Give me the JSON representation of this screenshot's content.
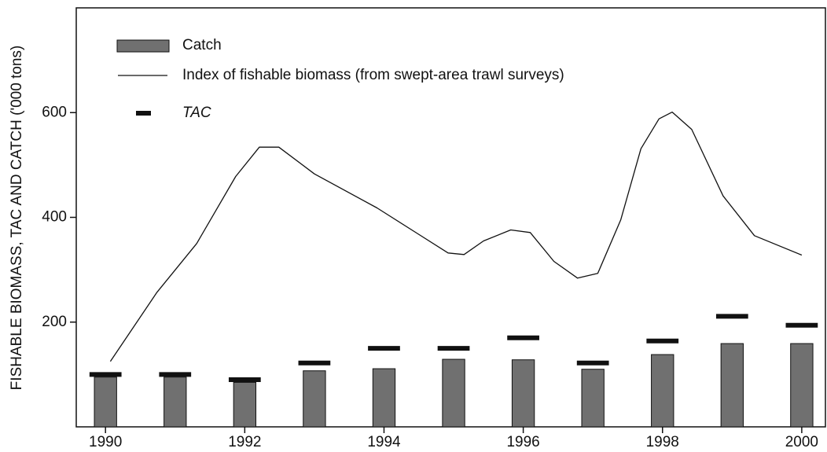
{
  "chart_data": {
    "type": "combo",
    "ylabel": "FISHABLE BIOMASS, TAC AND CATCH ('000 tons)",
    "xlim": [
      1989.58,
      2000.34
    ],
    "xticks": [
      1990,
      1992,
      1994,
      1996,
      1998,
      2000
    ],
    "ylim": [
      0,
      800
    ],
    "yticks": [
      200,
      400,
      600
    ],
    "series": [
      {
        "name": "Catch",
        "type": "bar",
        "color": "#707070",
        "x": [
          1990,
          1991,
          1992,
          1993,
          1994,
          1995,
          1996,
          1997,
          1998,
          1999,
          2000
        ],
        "values": [
          95,
          95,
          85,
          107,
          111,
          129,
          128,
          110,
          138,
          159,
          159
        ]
      },
      {
        "name": "Index of fishable biomass (from swept-area trawl surveys)",
        "type": "line",
        "color": "#111111",
        "x": [
          1990.07,
          1990.74,
          1991.31,
          1991.87,
          1992.21,
          1992.49,
          1993.0,
          1993.9,
          1994.47,
          1994.92,
          1995.15,
          1995.43,
          1995.82,
          1996.1,
          1996.44,
          1996.78,
          1997.07,
          1997.4,
          1997.69,
          1997.95,
          1998.14,
          1998.42,
          1998.87,
          1999.32,
          2000.0
        ],
        "values": [
          125,
          257,
          350,
          478,
          534,
          534,
          483,
          418,
          370,
          332,
          329,
          355,
          376,
          371,
          316,
          284,
          293,
          395,
          531,
          588,
          601,
          568,
          441,
          365,
          328
        ]
      },
      {
        "name": "TAC",
        "type": "marker",
        "color": "#111111",
        "x": [
          1990,
          1991,
          1992,
          1993,
          1994,
          1995,
          1996,
          1997,
          1998,
          1999,
          2000
        ],
        "values": [
          100,
          100,
          90,
          122,
          150,
          150,
          170,
          122,
          164,
          211,
          194
        ]
      }
    ]
  }
}
